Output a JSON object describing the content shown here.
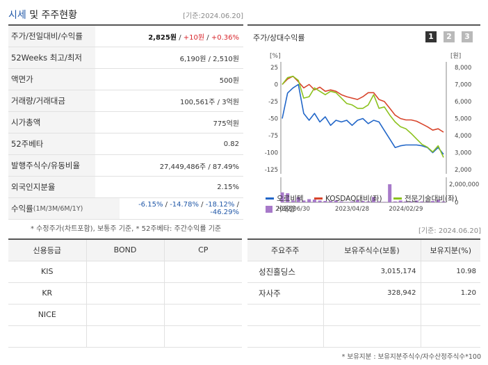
{
  "header": {
    "title_accent": "시세",
    "title_rest": " 및 주주현황",
    "date": "[기준:2024.06.20]"
  },
  "price_table": {
    "rows": [
      {
        "label": "주가/전일대비/수익률",
        "v1": "2,825원",
        "sep1": " / ",
        "v2": "+10원",
        "sep2": " / ",
        "v3": "+0.36%"
      },
      {
        "label": "52Weeks 최고/최저",
        "value": "6,190원 / 2,510원"
      },
      {
        "label": "액면가",
        "value": "500원"
      },
      {
        "label": "거래량/거래대금",
        "value": "100,561주 / 3억원"
      },
      {
        "label": "시가총액",
        "value": "775억원"
      },
      {
        "label": "52주베타",
        "value": "0.82"
      },
      {
        "label": "발행주식수/유동비율",
        "value": "27,449,486주 / 87.49%"
      },
      {
        "label": "외국인지분율",
        "value": "2.15%"
      }
    ],
    "return_row": {
      "label": "수익률",
      "label_small": " (1M/3M/6M/1Y)",
      "r1": "-6.15%",
      "r2": "-14.78%",
      "r3": "-18.12%",
      "r4": "-46.29%",
      "sep": " / "
    },
    "note": "* 수정주가(차트포함), 보통주 기준, * 52주베타: 주간수익률 기준"
  },
  "chart_panel": {
    "title": "주가/상대수익률",
    "buttons": [
      "1",
      "2",
      "3"
    ],
    "unit_left": "[%]",
    "unit_right": "[원]",
    "legend": {
      "series1": "오르비텍",
      "series2": "KOSDAQ대비(좌)",
      "series3": "전문기술대비(좌)",
      "volume": "거래량"
    },
    "colors": {
      "series1": "#2166c8",
      "series2": "#d8452c",
      "series3": "#8cc21e",
      "volume": "#a779c9"
    }
  },
  "chart_data": {
    "type": "line",
    "x_tick_labels": [
      "2022/06/30",
      "2023/04/28",
      "2024/02/29"
    ],
    "left_axis": {
      "ticks": [
        25,
        0,
        -25,
        -50,
        -75,
        -100,
        -125
      ],
      "ylim": [
        -125,
        25
      ]
    },
    "right_axis": {
      "ticks": [
        "8,000",
        "7,000",
        "6,000",
        "5,000",
        "4,000",
        "3,000",
        "2,000"
      ],
      "ylim": [
        2000,
        8000
      ]
    },
    "volume_axis": {
      "ticks": [
        "2,000,000",
        "0"
      ],
      "ylim": [
        0,
        2000000
      ]
    },
    "series": [
      {
        "name": "오르비텍",
        "axis": "right",
        "values": [
          5000,
          6500,
          6800,
          7000,
          5300,
          4900,
          5300,
          4800,
          5100,
          4600,
          4900,
          4800,
          4900,
          4600,
          4900,
          5000,
          4700,
          4900,
          4800,
          4300,
          3800,
          3300,
          3400,
          3450,
          3450,
          3450,
          3400,
          3300,
          3000,
          3300,
          2900
        ]
      },
      {
        "name": "KOSDAQ대비(좌)",
        "axis": "left",
        "values": [
          0,
          8,
          12,
          4,
          -5,
          0,
          -8,
          -4,
          -10,
          -8,
          -10,
          -15,
          -18,
          -20,
          -22,
          -18,
          -12,
          -12,
          -22,
          -25,
          -35,
          -45,
          -50,
          -52,
          -52,
          -54,
          -58,
          -62,
          -67,
          -65,
          -70
        ]
      },
      {
        "name": "전문기술대비(좌)",
        "axis": "left",
        "values": [
          0,
          10,
          12,
          6,
          -20,
          -18,
          -5,
          -10,
          -15,
          -10,
          -12,
          -20,
          -28,
          -30,
          -35,
          -35,
          -30,
          -15,
          -35,
          -33,
          -45,
          -55,
          -62,
          -65,
          -72,
          -80,
          -88,
          -92,
          -99,
          -90,
          -107
        ]
      },
      {
        "name": "거래량",
        "axis": "volume",
        "values": [
          1100000,
          1000000,
          200000,
          550000,
          200000,
          350000,
          300000,
          200000,
          150000,
          150000,
          200000,
          100000,
          50000,
          100000,
          250000,
          150000,
          100000,
          600000,
          100000,
          50000,
          2000000,
          100000,
          200000,
          100000,
          100000,
          200000,
          100000,
          100000,
          150000,
          300000,
          100000
        ]
      }
    ]
  },
  "credit_table": {
    "headers": [
      "신용등급",
      "BOND",
      "CP"
    ],
    "rows": [
      [
        "KIS",
        "",
        ""
      ],
      [
        "KR",
        "",
        ""
      ],
      [
        "NICE",
        "",
        ""
      ],
      [
        "",
        "",
        ""
      ]
    ]
  },
  "holders": {
    "date": "[기준: 2024.06.20]",
    "headers": [
      "주요주주",
      "보유주식수(보통)",
      "보유지분(%)"
    ],
    "rows": [
      [
        "성진홀딩스",
        "3,015,174",
        "10.98"
      ],
      [
        "자사주",
        "328,942",
        "1.20"
      ],
      [
        "",
        "",
        ""
      ],
      [
        "",
        "",
        ""
      ]
    ],
    "note": "* 보유지분 : 보유지분주식수/자수산정주식수*100"
  }
}
